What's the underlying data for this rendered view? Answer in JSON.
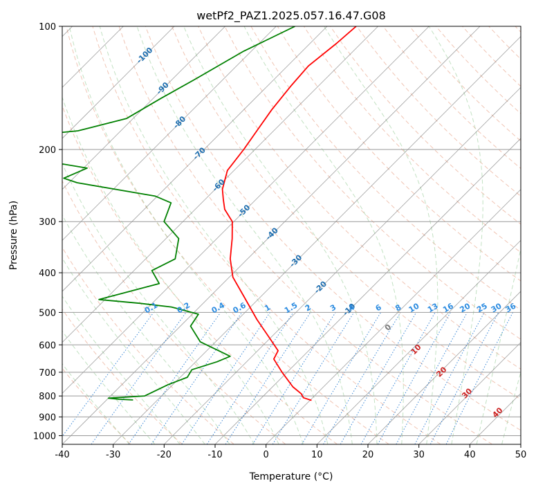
{
  "chart_data": {
    "type": "line",
    "title": "wetPf2_PAZ1.2025.057.16.47.G08",
    "xlabel": "Temperature (°C)",
    "ylabel": "Pressure (hPa)",
    "xlim": [
      -40,
      50
    ],
    "ylim": [
      1050,
      100
    ],
    "y_scale": "log",
    "skew": "skew-T log-p",
    "grid": true,
    "x_ticks": [
      -40,
      -30,
      -20,
      -10,
      0,
      10,
      20,
      30,
      40,
      50
    ],
    "y_ticks": [
      100,
      200,
      300,
      400,
      500,
      600,
      700,
      800,
      900,
      1000
    ],
    "isotherm_labels": [
      {
        "t": -100,
        "p": 118
      },
      {
        "t": -90,
        "p": 142
      },
      {
        "t": -80,
        "p": 172
      },
      {
        "t": -70,
        "p": 205
      },
      {
        "t": -60,
        "p": 245
      },
      {
        "t": -50,
        "p": 283
      },
      {
        "t": -40,
        "p": 322
      },
      {
        "t": -30,
        "p": 375
      },
      {
        "t": -20,
        "p": 435
      },
      {
        "t": -10,
        "p": 493
      }
    ],
    "mixing_ratio_labels": [
      "0.1",
      "0.2",
      "0.4",
      "0.6",
      "1",
      "1.5",
      "2",
      "3",
      "4",
      "6",
      "8",
      "10",
      "13",
      "16",
      "20",
      "25",
      "30",
      "36"
    ],
    "moist_adiabat_labels": [
      "0",
      "10",
      "20",
      "30",
      "40"
    ],
    "series": [
      {
        "color": "#ff0000",
        "points": [
          [
            -64.3,
            100
          ],
          [
            -64.8,
            110
          ],
          [
            -65.9,
            125
          ],
          [
            -65.4,
            140
          ],
          [
            -64.5,
            160
          ],
          [
            -63.3,
            180
          ],
          [
            -62.2,
            200
          ],
          [
            -61.3,
            225
          ],
          [
            -58.6,
            250
          ],
          [
            -56.4,
            265
          ],
          [
            -54.2,
            280
          ],
          [
            -50.3,
            300
          ],
          [
            -47.0,
            330
          ],
          [
            -43.4,
            370
          ],
          [
            -39.3,
            410
          ],
          [
            -33.0,
            460
          ],
          [
            -26.3,
            520
          ],
          [
            -19.9,
            580
          ],
          [
            -16.0,
            620
          ],
          [
            -15.2,
            650
          ],
          [
            -11.0,
            700
          ],
          [
            -6.0,
            760
          ],
          [
            -3.0,
            790
          ],
          [
            -1.8,
            808
          ],
          [
            0.3,
            820
          ]
        ]
      },
      {
        "color": "#008000",
        "points": [
          [
            -76.3,
            100
          ],
          [
            -81.5,
            115
          ],
          [
            -85.6,
            135
          ],
          [
            -88.5,
            150
          ],
          [
            -91.3,
            168
          ],
          [
            -98.4,
            180
          ],
          [
            -107.1,
            185
          ],
          [
            -108.8,
            205
          ],
          [
            -98.3,
            214
          ],
          [
            -89.3,
            222
          ],
          [
            -91.9,
            235
          ],
          [
            -88.4,
            241
          ],
          [
            -70.4,
            260
          ],
          [
            -66.0,
            270
          ],
          [
            -63.7,
            300
          ],
          [
            -57.5,
            330
          ],
          [
            -54.2,
            370
          ],
          [
            -56.5,
            395
          ],
          [
            -52.5,
            425
          ],
          [
            -61.2,
            465
          ],
          [
            -52.5,
            475
          ],
          [
            -45.5,
            485
          ],
          [
            -38.8,
            505
          ],
          [
            -38.0,
            540
          ],
          [
            -33.0,
            590
          ],
          [
            -24.3,
            640
          ],
          [
            -25.8,
            660
          ],
          [
            -29.2,
            690
          ],
          [
            -28.6,
            720
          ],
          [
            -30.9,
            750
          ],
          [
            -33.3,
            800
          ],
          [
            -40.0,
            810
          ],
          [
            -37.7,
            815
          ],
          [
            -34.8,
            818
          ]
        ]
      }
    ]
  }
}
